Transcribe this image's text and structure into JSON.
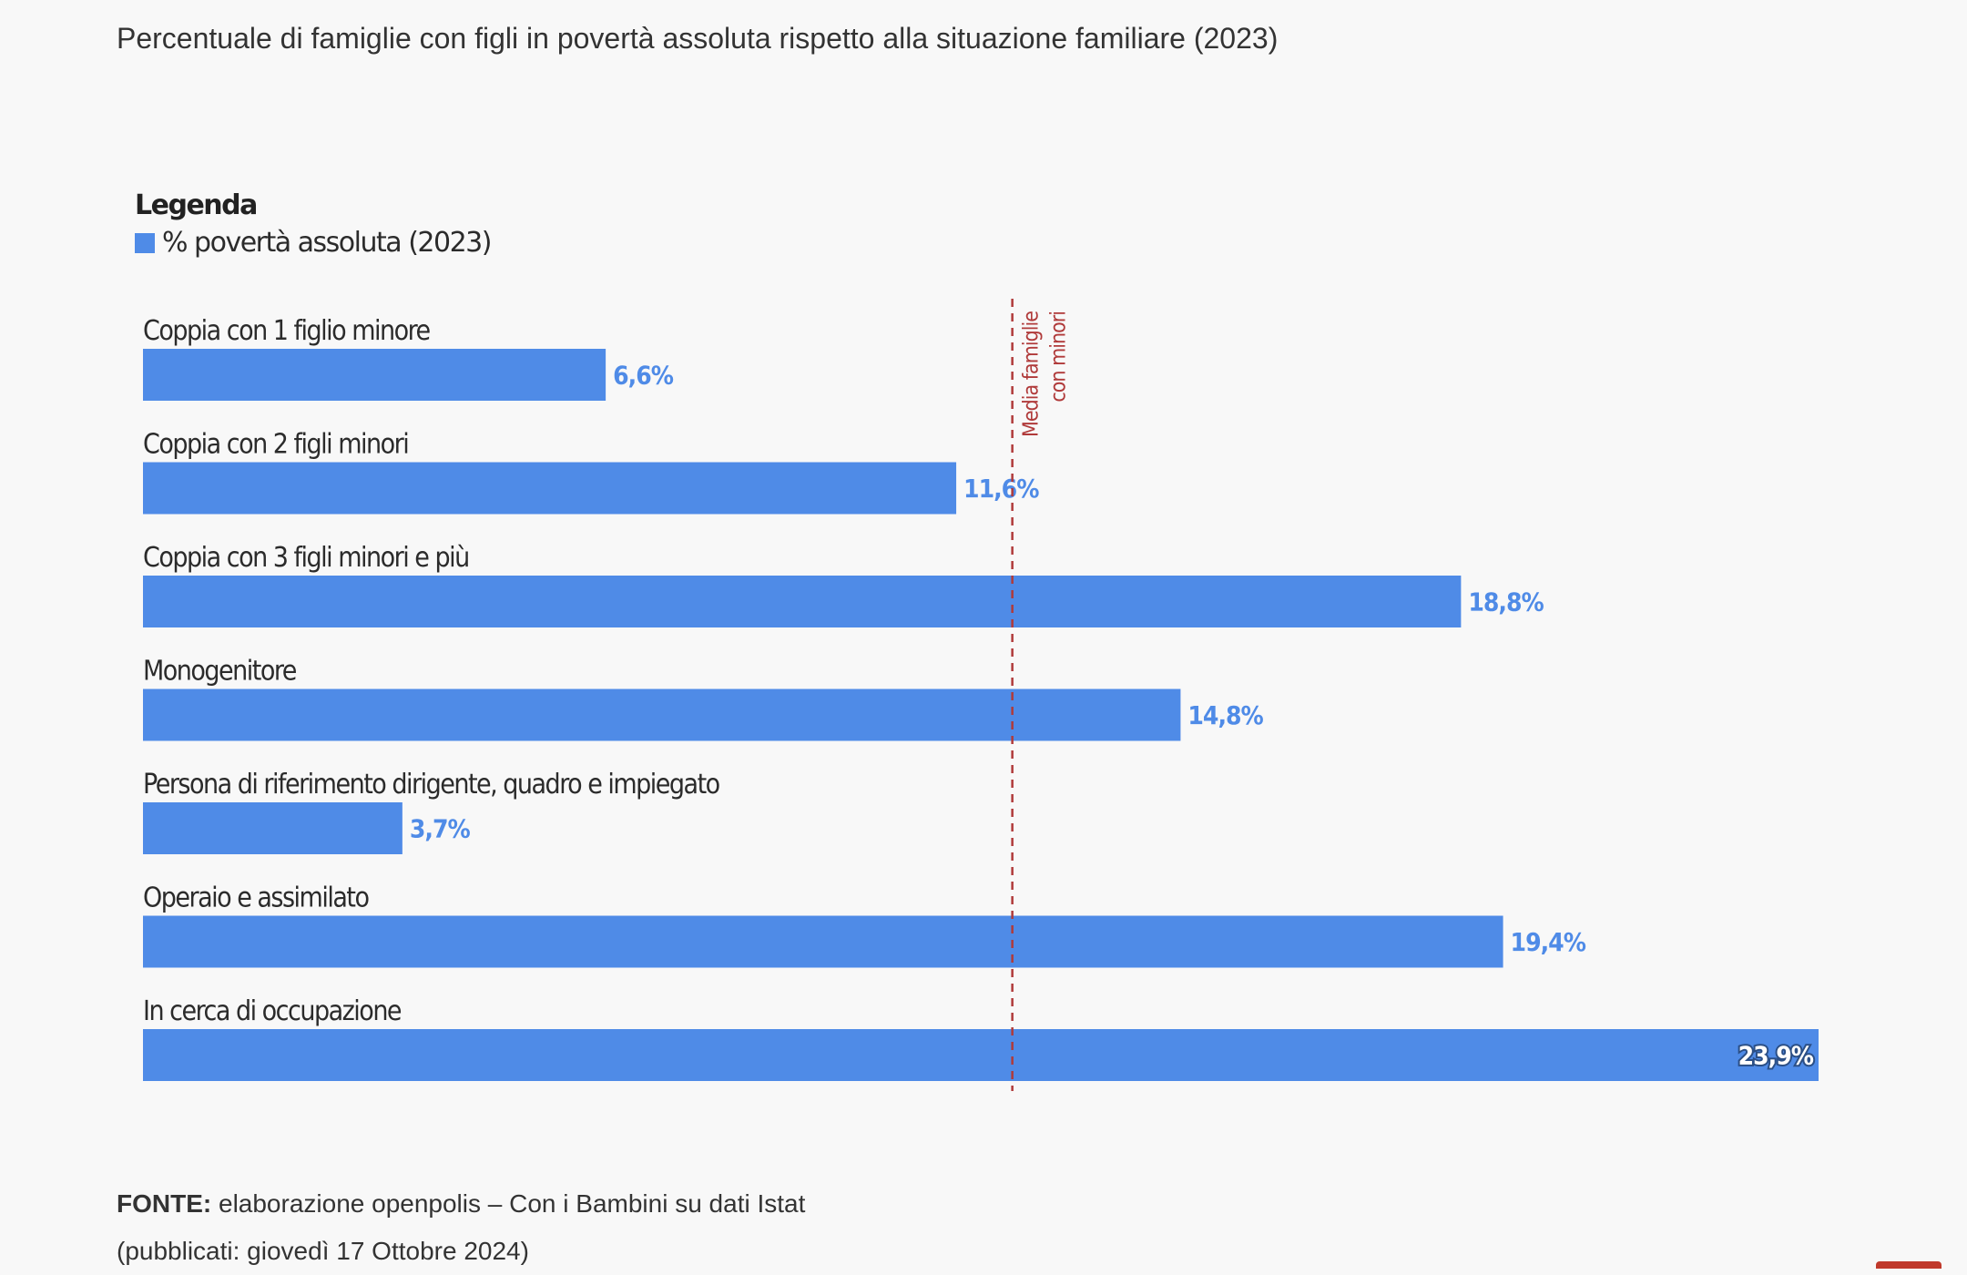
{
  "title": "Percentuale di famiglie con figli in povertà assoluta rispetto alla situazione familiare (2023)",
  "legend": {
    "heading": "Legenda",
    "item": "% povertà assoluta (2023)",
    "color": "#4f8be7"
  },
  "source": {
    "label": "FONTE:",
    "text": " elaborazione openpolis – Con i Bambini su dati Istat",
    "published": "(pubblicati: giovedì 17 Ottobre 2024)"
  },
  "chart_data": {
    "type": "bar",
    "orientation": "horizontal",
    "categories": [
      "Coppia con 1 figlio minore",
      "Coppia con 2 figli minori",
      "Coppia con 3 figli minori e più",
      "Monogenitore",
      "Persona di riferimento dirigente, quadro e impiegato",
      "Operaio e assimilato",
      "In cerca di occupazione"
    ],
    "series": [
      {
        "name": "% povertà assoluta (2023)",
        "values": [
          6.6,
          11.6,
          18.8,
          14.8,
          3.7,
          19.4,
          23.9
        ],
        "labels": [
          "6,6%",
          "11,6%",
          "18,8%",
          "14,8%",
          "3,7%",
          "19,4%",
          "23,9%"
        ],
        "color": "#4f8be7"
      }
    ],
    "reference_line": {
      "value": 12.4,
      "label_lines": [
        "Media famiglie",
        "con minori"
      ],
      "color": "#b03a3a"
    },
    "xlim": [
      0,
      23.9
    ],
    "grid": false,
    "legend_position": "top-left"
  }
}
